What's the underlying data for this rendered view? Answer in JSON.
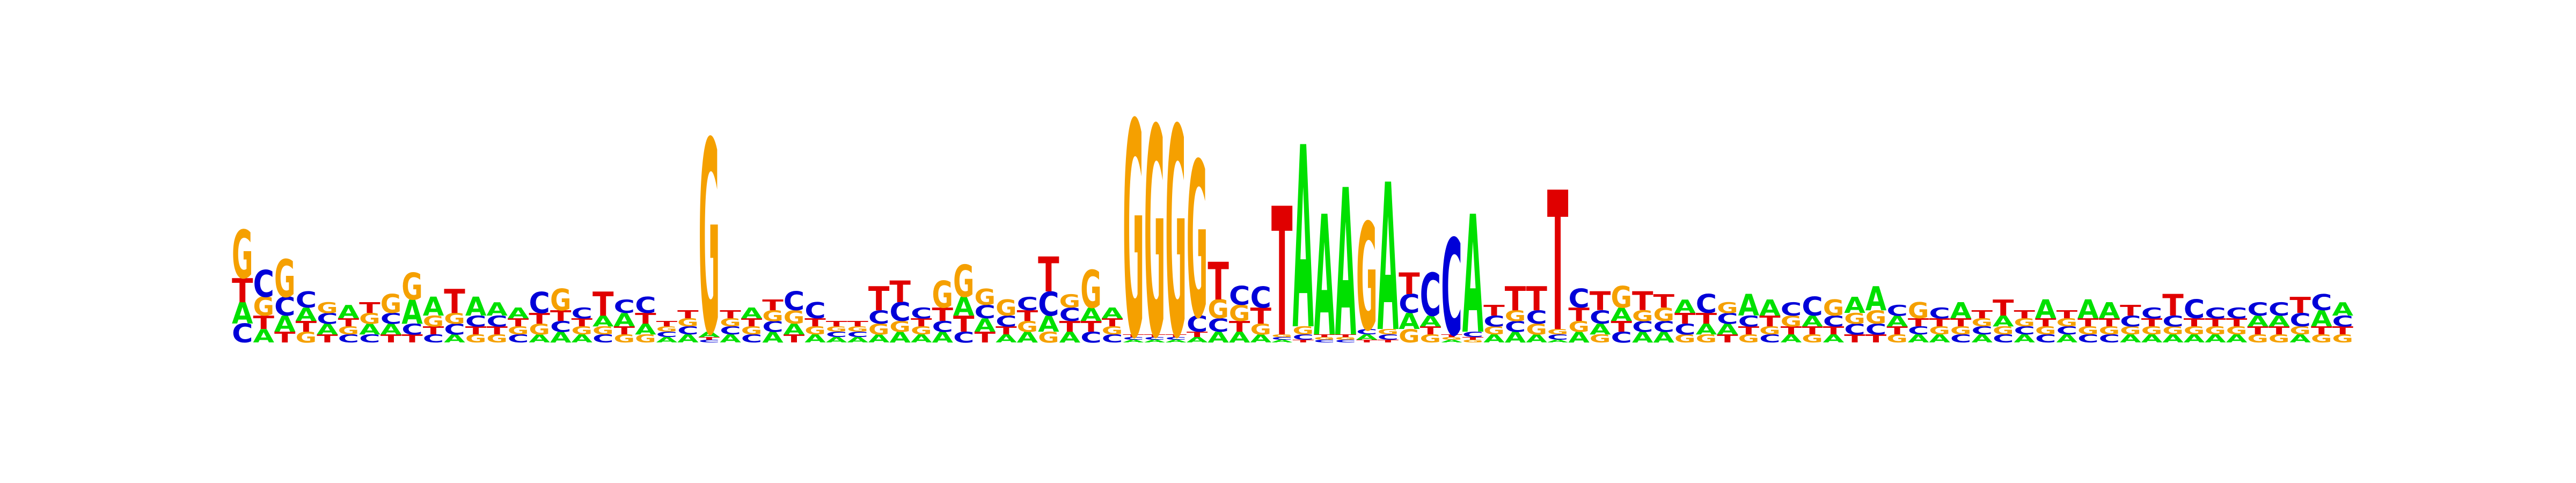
{
  "logo": {
    "type": "sequence-logo",
    "alphabet": [
      "A",
      "C",
      "G",
      "T"
    ],
    "colors": {
      "A": "#00e000",
      "C": "#0000d8",
      "G": "#f5a000",
      "T": "#e00000"
    },
    "positions": [
      {
        "A": 0.08,
        "C": 0.07,
        "G": 0.18,
        "T": 0.09
      },
      {
        "A": 0.05,
        "C": 0.1,
        "G": 0.07,
        "T": 0.05
      },
      {
        "A": 0.06,
        "C": 0.07,
        "G": 0.14,
        "T": 0.04
      },
      {
        "A": 0.05,
        "C": 0.06,
        "G": 0.04,
        "T": 0.04
      },
      {
        "A": 0.04,
        "C": 0.04,
        "G": 0.04,
        "T": 0.03
      },
      {
        "A": 0.05,
        "C": 0.03,
        "G": 0.03,
        "T": 0.03
      },
      {
        "A": 0.04,
        "C": 0.03,
        "G": 0.04,
        "T": 0.04
      },
      {
        "A": 0.04,
        "C": 0.04,
        "G": 0.07,
        "T": 0.03
      },
      {
        "A": 0.09,
        "C": 0.04,
        "G": 0.1,
        "T": 0.03
      },
      {
        "A": 0.07,
        "C": 0.03,
        "G": 0.04,
        "T": 0.03
      },
      {
        "A": 0.03,
        "C": 0.04,
        "G": 0.04,
        "T": 0.09
      },
      {
        "A": 0.07,
        "C": 0.04,
        "G": 0.03,
        "T": 0.03
      },
      {
        "A": 0.05,
        "C": 0.04,
        "G": 0.03,
        "T": 0.03
      },
      {
        "A": 0.04,
        "C": 0.03,
        "G": 0.03,
        "T": 0.03
      },
      {
        "A": 0.03,
        "C": 0.08,
        "G": 0.04,
        "T": 0.04
      },
      {
        "A": 0.04,
        "C": 0.04,
        "G": 0.08,
        "T": 0.04
      },
      {
        "A": 0.03,
        "C": 0.04,
        "G": 0.03,
        "T": 0.03
      },
      {
        "A": 0.04,
        "C": 0.03,
        "G": 0.03,
        "T": 0.09
      },
      {
        "A": 0.05,
        "C": 0.05,
        "G": 0.03,
        "T": 0.03
      },
      {
        "A": 0.04,
        "C": 0.06,
        "G": 0.03,
        "T": 0.04
      },
      {
        "A": 0.02,
        "C": 0.02,
        "G": 0.02,
        "T": 0.02
      },
      {
        "A": 0.03,
        "C": 0.03,
        "G": 0.03,
        "T": 0.03
      },
      {
        "A": 0.02,
        "C": 0.01,
        "G": 0.72,
        "T": 0.01
      },
      {
        "A": 0.03,
        "C": 0.03,
        "G": 0.03,
        "T": 0.03
      },
      {
        "A": 0.04,
        "C": 0.03,
        "G": 0.03,
        "T": 0.03
      },
      {
        "A": 0.04,
        "C": 0.04,
        "G": 0.04,
        "T": 0.04
      },
      {
        "A": 0.04,
        "C": 0.07,
        "G": 0.05,
        "T": 0.03
      },
      {
        "A": 0.03,
        "C": 0.06,
        "G": 0.03,
        "T": 0.03
      },
      {
        "A": 0.02,
        "C": 0.02,
        "G": 0.02,
        "T": 0.02
      },
      {
        "A": 0.02,
        "C": 0.02,
        "G": 0.02,
        "T": 0.02
      },
      {
        "A": 0.03,
        "C": 0.05,
        "G": 0.04,
        "T": 0.09
      },
      {
        "A": 0.04,
        "C": 0.07,
        "G": 0.04,
        "T": 0.08
      },
      {
        "A": 0.03,
        "C": 0.04,
        "G": 0.03,
        "T": 0.03
      },
      {
        "A": 0.04,
        "C": 0.04,
        "G": 0.1,
        "T": 0.05
      },
      {
        "A": 0.07,
        "C": 0.04,
        "G": 0.12,
        "T": 0.06
      },
      {
        "A": 0.05,
        "C": 0.05,
        "G": 0.06,
        "T": 0.04
      },
      {
        "A": 0.03,
        "C": 0.04,
        "G": 0.06,
        "T": 0.03
      },
      {
        "A": 0.04,
        "C": 0.05,
        "G": 0.04,
        "T": 0.04
      },
      {
        "A": 0.06,
        "C": 0.09,
        "G": 0.04,
        "T": 0.13
      },
      {
        "A": 0.04,
        "C": 0.05,
        "G": 0.05,
        "T": 0.04
      },
      {
        "A": 0.05,
        "C": 0.04,
        "G": 0.14,
        "T": 0.04
      },
      {
        "A": 0.04,
        "C": 0.03,
        "G": 0.03,
        "T": 0.03
      },
      {
        "A": 0.01,
        "C": 0.01,
        "G": 0.8,
        "T": 0.01
      },
      {
        "A": 0.01,
        "C": 0.01,
        "G": 0.78,
        "T": 0.01
      },
      {
        "A": 0.01,
        "C": 0.01,
        "G": 0.78,
        "T": 0.01
      },
      {
        "A": 0.02,
        "C": 0.06,
        "G": 0.58,
        "T": 0.02
      },
      {
        "A": 0.04,
        "C": 0.05,
        "G": 0.07,
        "T": 0.14
      },
      {
        "A": 0.04,
        "C": 0.07,
        "G": 0.06,
        "T": 0.04
      },
      {
        "A": 0.03,
        "C": 0.08,
        "G": 0.04,
        "T": 0.06
      },
      {
        "A": 0.01,
        "C": 0.01,
        "G": 0.01,
        "T": 0.48
      },
      {
        "A": 0.68,
        "C": 0.02,
        "G": 0.03,
        "T": 0.01
      },
      {
        "A": 0.45,
        "C": 0.01,
        "G": 0.01,
        "T": 0.01
      },
      {
        "A": 0.55,
        "C": 0.01,
        "G": 0.01,
        "T": 0.01
      },
      {
        "A": 0.02,
        "C": 0.02,
        "G": 0.4,
        "T": 0.01
      },
      {
        "A": 0.55,
        "C": 0.02,
        "G": 0.02,
        "T": 0.01
      },
      {
        "A": 0.06,
        "C": 0.07,
        "G": 0.05,
        "T": 0.08
      },
      {
        "A": 0.04,
        "C": 0.16,
        "G": 0.03,
        "T": 0.03
      },
      {
        "A": 0.01,
        "C": 0.36,
        "G": 0.01,
        "T": 0.01
      },
      {
        "A": 0.44,
        "C": 0.02,
        "G": 0.01,
        "T": 0.01
      },
      {
        "A": 0.03,
        "C": 0.04,
        "G": 0.03,
        "T": 0.04
      },
      {
        "A": 0.04,
        "C": 0.04,
        "G": 0.04,
        "T": 0.09
      },
      {
        "A": 0.03,
        "C": 0.05,
        "G": 0.04,
        "T": 0.09
      },
      {
        "A": 0.01,
        "C": 0.02,
        "G": 0.02,
        "T": 0.52
      },
      {
        "A": 0.04,
        "C": 0.07,
        "G": 0.04,
        "T": 0.05
      },
      {
        "A": 0.04,
        "C": 0.05,
        "G": 0.03,
        "T": 0.07
      },
      {
        "A": 0.05,
        "C": 0.04,
        "G": 0.08,
        "T": 0.04
      },
      {
        "A": 0.04,
        "C": 0.04,
        "G": 0.04,
        "T": 0.07
      },
      {
        "A": 0.04,
        "C": 0.04,
        "G": 0.05,
        "T": 0.05
      },
      {
        "A": 0.05,
        "C": 0.04,
        "G": 0.03,
        "T": 0.04
      },
      {
        "A": 0.04,
        "C": 0.07,
        "G": 0.03,
        "T": 0.04
      },
      {
        "A": 0.04,
        "C": 0.04,
        "G": 0.04,
        "T": 0.03
      },
      {
        "A": 0.08,
        "C": 0.04,
        "G": 0.03,
        "T": 0.03
      },
      {
        "A": 0.06,
        "C": 0.03,
        "G": 0.03,
        "T": 0.04
      },
      {
        "A": 0.03,
        "C": 0.05,
        "G": 0.04,
        "T": 0.03
      },
      {
        "A": 0.04,
        "C": 0.07,
        "G": 0.03,
        "T": 0.03
      },
      {
        "A": 0.03,
        "C": 0.04,
        "G": 0.06,
        "T": 0.03
      },
      {
        "A": 0.06,
        "C": 0.04,
        "G": 0.04,
        "T": 0.03
      },
      {
        "A": 0.09,
        "C": 0.04,
        "G": 0.05,
        "T": 0.03
      },
      {
        "A": 0.04,
        "C": 0.04,
        "G": 0.03,
        "T": 0.03
      },
      {
        "A": 0.03,
        "C": 0.03,
        "G": 0.06,
        "T": 0.03
      },
      {
        "A": 0.03,
        "C": 0.04,
        "G": 0.03,
        "T": 0.03
      },
      {
        "A": 0.06,
        "C": 0.03,
        "G": 0.03,
        "T": 0.03
      },
      {
        "A": 0.03,
        "C": 0.03,
        "G": 0.03,
        "T": 0.03
      },
      {
        "A": 0.04,
        "C": 0.03,
        "G": 0.03,
        "T": 0.06
      },
      {
        "A": 0.03,
        "C": 0.03,
        "G": 0.03,
        "T": 0.03
      },
      {
        "A": 0.07,
        "C": 0.03,
        "G": 0.03,
        "T": 0.03
      },
      {
        "A": 0.03,
        "C": 0.03,
        "G": 0.03,
        "T": 0.03
      },
      {
        "A": 0.07,
        "C": 0.03,
        "G": 0.03,
        "T": 0.03
      },
      {
        "A": 0.06,
        "C": 0.03,
        "G": 0.03,
        "T": 0.03
      },
      {
        "A": 0.03,
        "C": 0.04,
        "G": 0.03,
        "T": 0.04
      },
      {
        "A": 0.03,
        "C": 0.04,
        "G": 0.03,
        "T": 0.03
      },
      {
        "A": 0.03,
        "C": 0.04,
        "G": 0.03,
        "T": 0.08
      },
      {
        "A": 0.03,
        "C": 0.07,
        "G": 0.03,
        "T": 0.03
      },
      {
        "A": 0.03,
        "C": 0.04,
        "G": 0.03,
        "T": 0.03
      },
      {
        "A": 0.03,
        "C": 0.04,
        "G": 0.03,
        "T": 0.03
      },
      {
        "A": 0.04,
        "C": 0.05,
        "G": 0.03,
        "T": 0.03
      },
      {
        "A": 0.04,
        "C": 0.05,
        "G": 0.03,
        "T": 0.03
      },
      {
        "A": 0.03,
        "C": 0.05,
        "G": 0.03,
        "T": 0.06
      },
      {
        "A": 0.06,
        "C": 0.06,
        "G": 0.03,
        "T": 0.03
      },
      {
        "A": 0.05,
        "C": 0.04,
        "G": 0.03,
        "T": 0.03
      }
    ]
  }
}
